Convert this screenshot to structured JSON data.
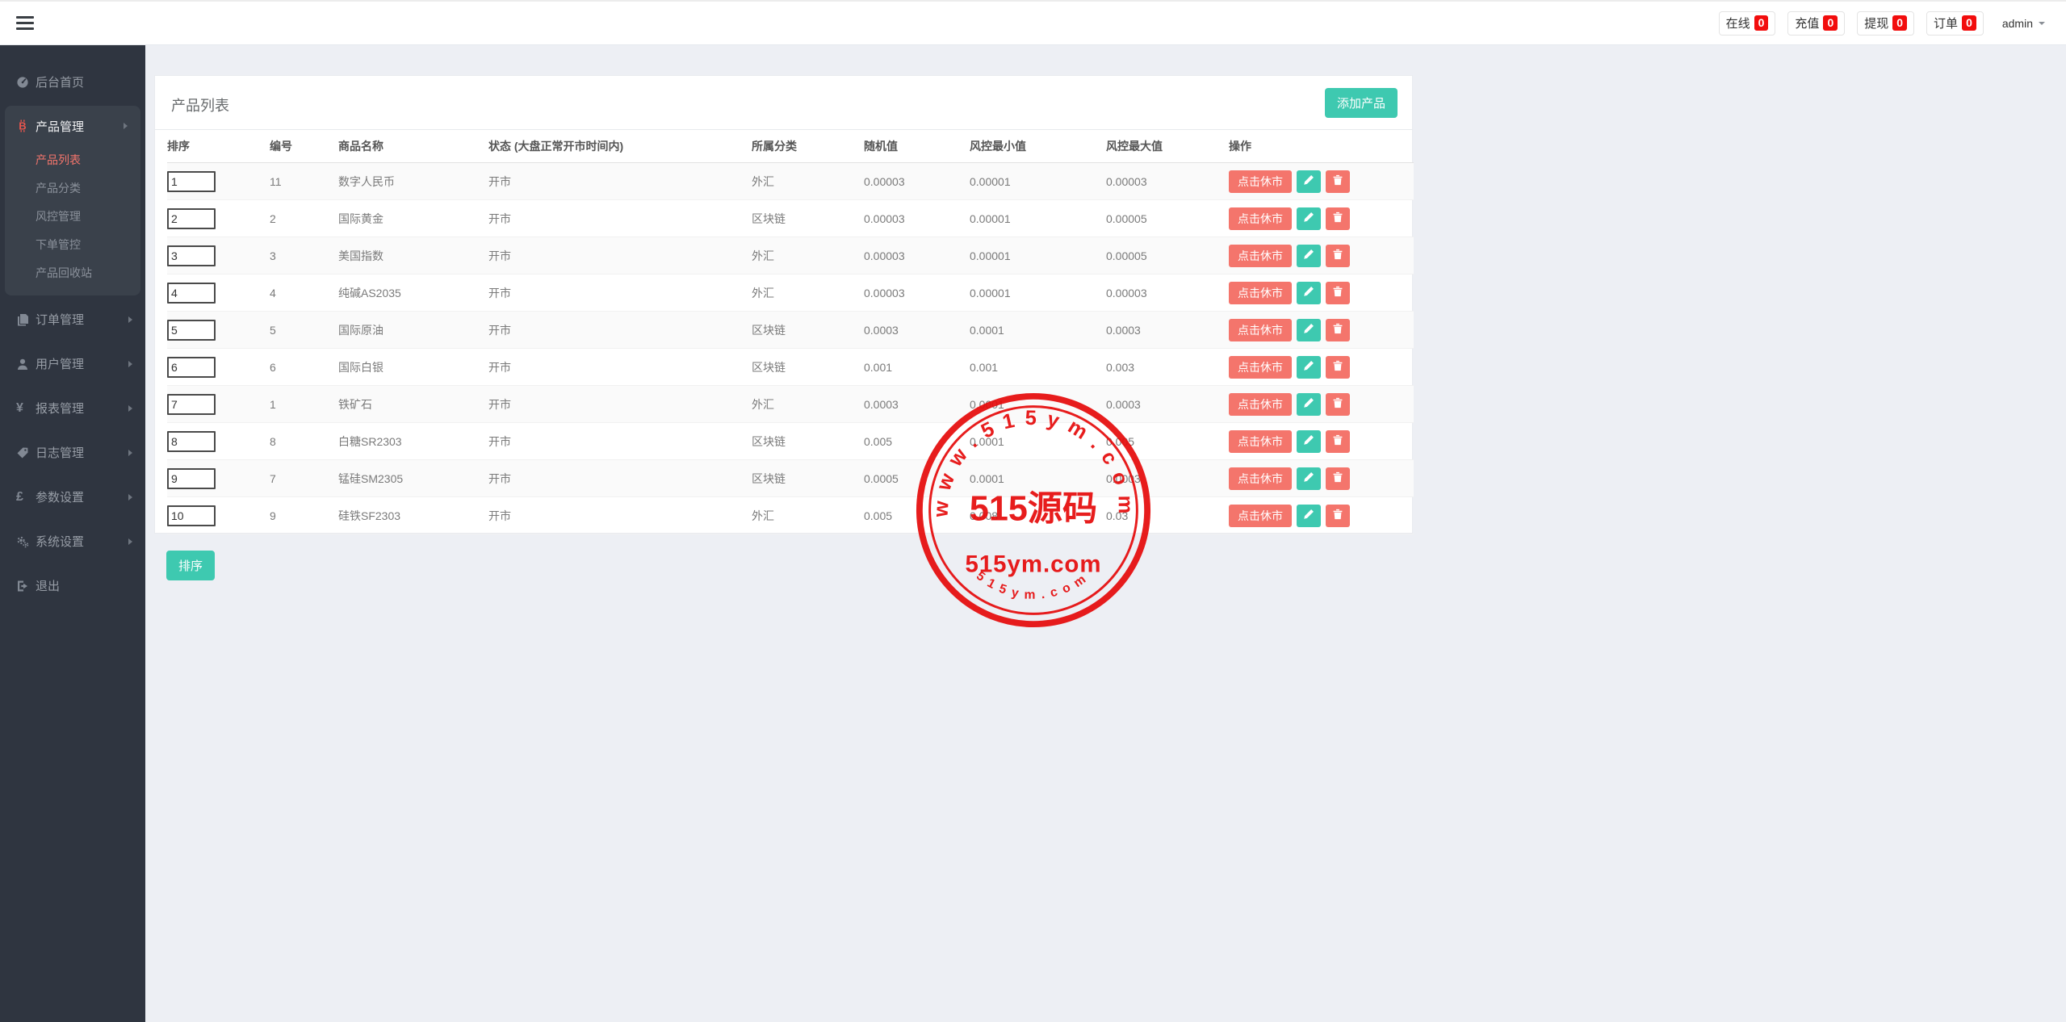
{
  "topbar": {
    "stats": [
      {
        "label": "在线",
        "count": "0"
      },
      {
        "label": "充值",
        "count": "0"
      },
      {
        "label": "提现",
        "count": "0"
      },
      {
        "label": "订单",
        "count": "0"
      }
    ],
    "user": {
      "name": "admin"
    }
  },
  "sidebar": {
    "items": [
      {
        "id": "dashboard",
        "label": "后台首页",
        "icon": "dashboard-icon",
        "has_caret": false
      },
      {
        "id": "products",
        "label": "产品管理",
        "icon": "bitcoin-icon",
        "has_caret": true,
        "active": true,
        "children": [
          {
            "label": "产品列表",
            "active": true
          },
          {
            "label": "产品分类"
          },
          {
            "label": "风控管理"
          },
          {
            "label": "下单管控"
          },
          {
            "label": "产品回收站"
          }
        ]
      },
      {
        "id": "orders",
        "label": "订单管理",
        "icon": "orders-icon",
        "has_caret": true
      },
      {
        "id": "users",
        "label": "用户管理",
        "icon": "user-icon",
        "has_caret": true
      },
      {
        "id": "reports",
        "label": "报表管理",
        "icon": "yen-icon",
        "has_caret": true
      },
      {
        "id": "logs",
        "label": "日志管理",
        "icon": "tags-icon",
        "has_caret": true
      },
      {
        "id": "params",
        "label": "参数设置",
        "icon": "pound-icon",
        "has_caret": true
      },
      {
        "id": "system",
        "label": "系统设置",
        "icon": "gears-icon",
        "has_caret": true
      },
      {
        "id": "logout",
        "label": "退出",
        "icon": "signout-icon",
        "has_caret": false
      }
    ]
  },
  "main": {
    "card_title": "产品列表",
    "add_button": "添加产品",
    "sort_button": "排序",
    "table": {
      "headers": [
        "排序",
        "编号",
        "商品名称",
        "状态 (大盘正常开市时间内)",
        "所属分类",
        "随机值",
        "风控最小值",
        "风控最大值",
        "操作"
      ],
      "action_labels": {
        "market_toggle": "点击休市",
        "edit_icon": "pencil-icon",
        "delete_icon": "trash-icon"
      },
      "rows": [
        {
          "sort": "1",
          "id": "11",
          "name": "数字人民币",
          "status": "开市",
          "category": "外汇",
          "random": "0.00003",
          "risk_min": "0.00001",
          "risk_max": "0.00003"
        },
        {
          "sort": "2",
          "id": "2",
          "name": "国际黄金",
          "status": "开市",
          "category": "区块链",
          "random": "0.00003",
          "risk_min": "0.00001",
          "risk_max": "0.00005"
        },
        {
          "sort": "3",
          "id": "3",
          "name": "美国指数",
          "status": "开市",
          "category": "外汇",
          "random": "0.00003",
          "risk_min": "0.00001",
          "risk_max": "0.00005"
        },
        {
          "sort": "4",
          "id": "4",
          "name": "纯碱AS2035",
          "status": "开市",
          "category": "外汇",
          "random": "0.00003",
          "risk_min": "0.00001",
          "risk_max": "0.00003"
        },
        {
          "sort": "5",
          "id": "5",
          "name": "国际原油",
          "status": "开市",
          "category": "区块链",
          "random": "0.0003",
          "risk_min": "0.0001",
          "risk_max": "0.0003"
        },
        {
          "sort": "6",
          "id": "6",
          "name": "国际白银",
          "status": "开市",
          "category": "区块链",
          "random": "0.001",
          "risk_min": "0.001",
          "risk_max": "0.003"
        },
        {
          "sort": "7",
          "id": "1",
          "name": "铁矿石",
          "status": "开市",
          "category": "外汇",
          "random": "0.0003",
          "risk_min": "0.0001",
          "risk_max": "0.0003"
        },
        {
          "sort": "8",
          "id": "8",
          "name": "白糖SR2303",
          "status": "开市",
          "category": "区块链",
          "random": "0.005",
          "risk_min": "0.0001",
          "risk_max": "0.005"
        },
        {
          "sort": "9",
          "id": "7",
          "name": "锰硅SM2305",
          "status": "开市",
          "category": "区块链",
          "random": "0.0005",
          "risk_min": "0.0001",
          "risk_max": "0.0003"
        },
        {
          "sort": "10",
          "id": "9",
          "name": "硅铁SF2303",
          "status": "开市",
          "category": "外汇",
          "random": "0.005",
          "risk_min": "0.008",
          "risk_max": "0.03"
        }
      ]
    }
  },
  "watermark": {
    "arc_top": "www.515ym.com",
    "center_main": "515源码",
    "center_sub": "515ym.com",
    "arc_bottom": "515ym.com",
    "color": "#e60a0a"
  },
  "colors": {
    "accent_teal": "#3ec9b0",
    "danger_salmon": "#f4756c",
    "badge_red": "#f20d0d",
    "sidebar_bg": "#2f3540",
    "page_bg": "#edeff4"
  }
}
